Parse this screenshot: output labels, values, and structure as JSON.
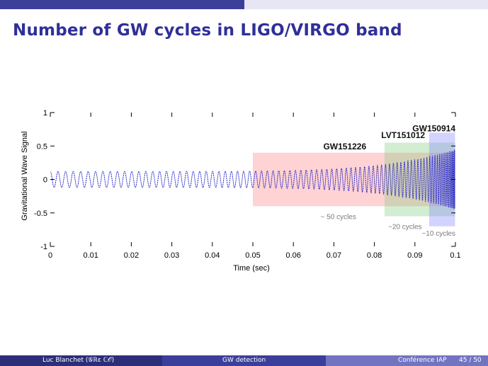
{
  "slide": {
    "title": "Number of GW cycles in LIGO/VIRGO band"
  },
  "footer": {
    "author": "Luc Blanchet  (𝒢ℝε ℂ𝒪)",
    "talk": "GW detection",
    "venue": "Conférence IAP",
    "page": "45 / 50"
  },
  "chart_data": {
    "type": "line",
    "title": "",
    "xlabel": "Time (sec)",
    "ylabel": "Gravitational Wave Signal",
    "xlim": [
      0,
      0.1
    ],
    "ylim": [
      -1,
      1
    ],
    "x_ticks": [
      "0",
      "0.01",
      "0.02",
      "0.03",
      "0.04",
      "0.05",
      "0.06",
      "0.07",
      "0.08",
      "0.09",
      "0.1"
    ],
    "y_ticks": [
      "1",
      "0.5",
      "0",
      "-0.5",
      "-1"
    ],
    "grid": false,
    "series": [
      {
        "color": "#2828c8",
        "chirp_end": 0.1,
        "amplitude_start": 0.12,
        "amplitude_end": 0.45,
        "cycles_total": 84
      }
    ],
    "regions": [
      {
        "label": "GW151226",
        "x_start": 0.05,
        "x_end": 0.1,
        "y_low": -0.4,
        "y_high": 0.4,
        "color": "#ff8080",
        "cycles_label": "~ 50 cycles"
      },
      {
        "label": "LVT151012",
        "x_start": 0.0825,
        "x_end": 0.1,
        "y_low": -0.55,
        "y_high": 0.55,
        "color": "#80cc80",
        "cycles_label": "~20  cycles"
      },
      {
        "label": "GW150914",
        "x_start": 0.0935,
        "x_end": 0.1,
        "y_low": -0.7,
        "y_high": 0.7,
        "color": "#8080ff",
        "cycles_label": "~10 cycles"
      }
    ]
  }
}
